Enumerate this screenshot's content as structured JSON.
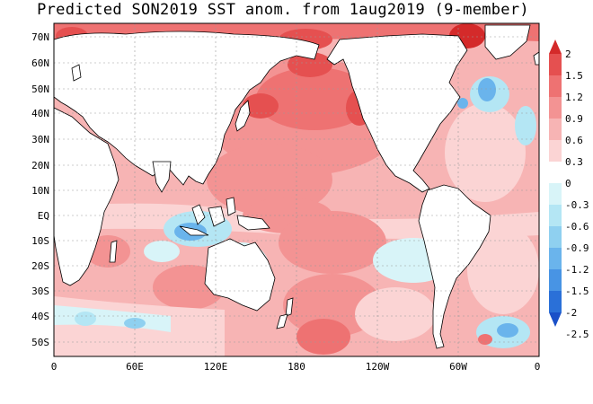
{
  "title": "Predicted SON2019 SST anom. from 1aug2019 (9-member)",
  "lat_labels": [
    "70N",
    "60N",
    "50N",
    "40N",
    "30N",
    "20N",
    "10N",
    "EQ",
    "10S",
    "20S",
    "30S",
    "40S",
    "50S"
  ],
  "lon_labels": [
    "0",
    "60E",
    "120E",
    "180",
    "120W",
    "60W",
    "0"
  ],
  "colorbar": {
    "levels": [
      "2",
      "1.5",
      "1.2",
      "0.9",
      "0.6",
      "0.3",
      "0",
      "-0.3",
      "-0.6",
      "-0.9",
      "-1.2",
      "-1.5",
      "-2",
      "-2.5"
    ],
    "colors": [
      "#d42a2a",
      "#e55050",
      "#ee7272",
      "#f39393",
      "#f7b4b4",
      "#fbd4d4",
      "#ffffff",
      "#d8f4f8",
      "#b4e6f4",
      "#8fd0f0",
      "#6ab4ec",
      "#4894e4",
      "#2a70d8",
      "#1a50c8"
    ]
  },
  "colors": {
    "ocean_base": "#f7b4b4",
    "land": "#ffffff",
    "grid": "#999999"
  }
}
